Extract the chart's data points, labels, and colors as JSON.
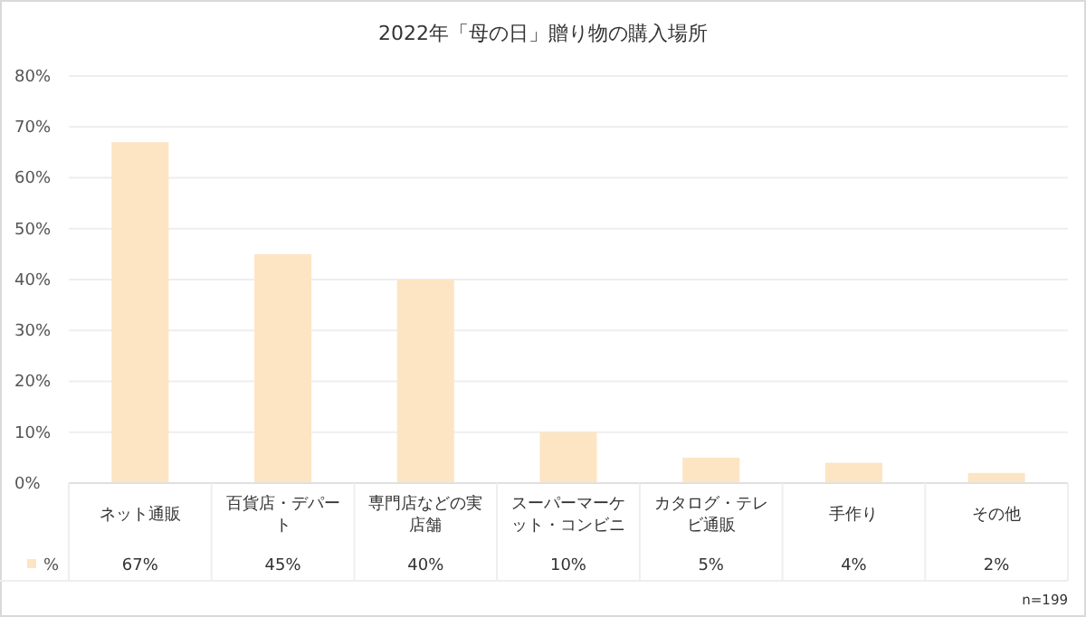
{
  "chart_data": {
    "type": "bar",
    "title": "2022年「母の日」贈り物の購入場所",
    "categories": [
      "ネット通販",
      "百貨店・デパート",
      "専門店などの実店舗",
      "スーパーマーケット・コンビニ",
      "カタログ・テレビ通販",
      "手作り",
      "その他"
    ],
    "series": [
      {
        "name": "%",
        "color": "#fde5c4",
        "values": [
          67,
          45,
          40,
          10,
          5,
          4,
          2
        ],
        "value_labels": [
          "67%",
          "45%",
          "40%",
          "10%",
          "5%",
          "4%",
          "2%"
        ]
      }
    ],
    "ylim": [
      0,
      80
    ],
    "yticks": [
      {
        "value": 0,
        "label": "0%"
      },
      {
        "value": 10,
        "label": "10%"
      },
      {
        "value": 20,
        "label": "20%"
      },
      {
        "value": 30,
        "label": "30%"
      },
      {
        "value": 40,
        "label": "40%"
      },
      {
        "value": 50,
        "label": "50%"
      },
      {
        "value": 60,
        "label": "60%"
      },
      {
        "value": 70,
        "label": "70%"
      },
      {
        "value": 80,
        "label": "80%"
      }
    ],
    "grid": "y",
    "legend": "bottom",
    "annotations": [
      "n=199"
    ]
  }
}
